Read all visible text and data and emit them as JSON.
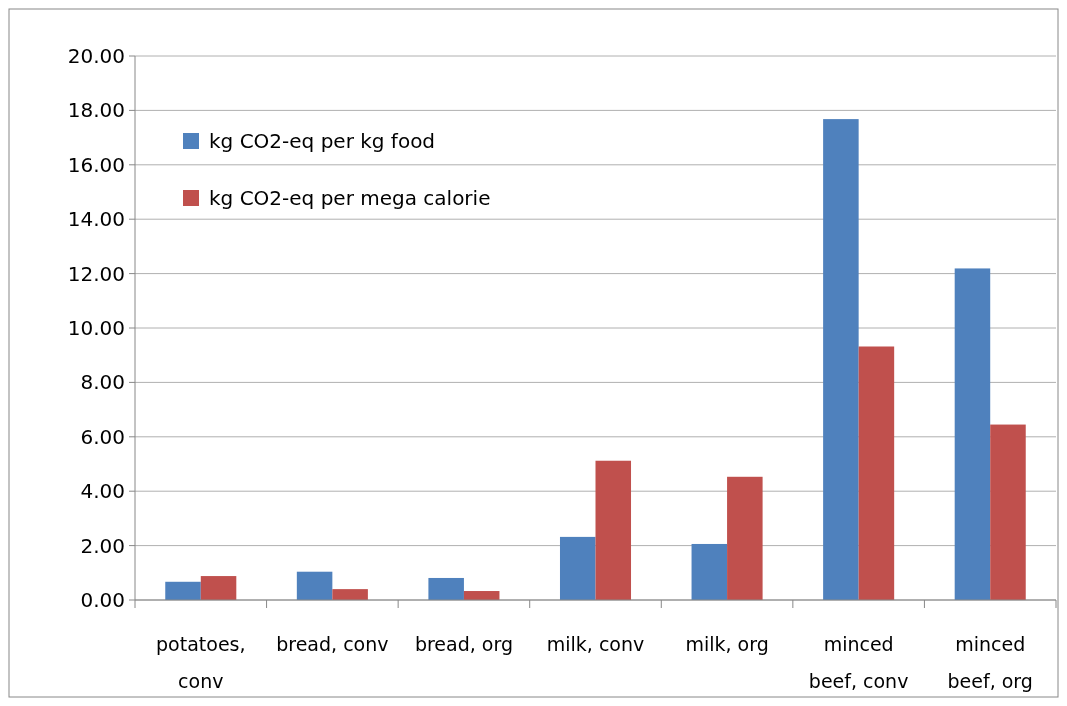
{
  "chart_data": {
    "type": "bar",
    "categories": [
      "potatoes, conv",
      "bread, conv",
      "bread, org",
      "milk, conv",
      "milk, org",
      "minced beef, conv",
      "minced beef, org"
    ],
    "series": [
      {
        "name": "kg CO2-eq per kg food",
        "color": "#4f81bd",
        "values": [
          0.67,
          1.04,
          0.81,
          2.32,
          2.06,
          17.68,
          12.19
        ]
      },
      {
        "name": "kg CO2-eq per mega calorie",
        "color": "#c0504d",
        "values": [
          0.88,
          0.4,
          0.33,
          5.12,
          4.53,
          9.32,
          6.45
        ]
      }
    ],
    "ylim": [
      0,
      20
    ],
    "yticks": [
      {
        "value": 0,
        "label": "0.00"
      },
      {
        "value": 2,
        "label": "2.00"
      },
      {
        "value": 4,
        "label": "4.00"
      },
      {
        "value": 6,
        "label": "6.00"
      },
      {
        "value": 8,
        "label": "8.00"
      },
      {
        "value": 10,
        "label": "10.00"
      },
      {
        "value": 12,
        "label": "12.00"
      },
      {
        "value": 14,
        "label": "14.00"
      },
      {
        "value": 16,
        "label": "16.00"
      },
      {
        "value": 18,
        "label": "18.00"
      },
      {
        "value": 20,
        "label": "20.00"
      }
    ],
    "grid": "y",
    "legend": "top left"
  }
}
